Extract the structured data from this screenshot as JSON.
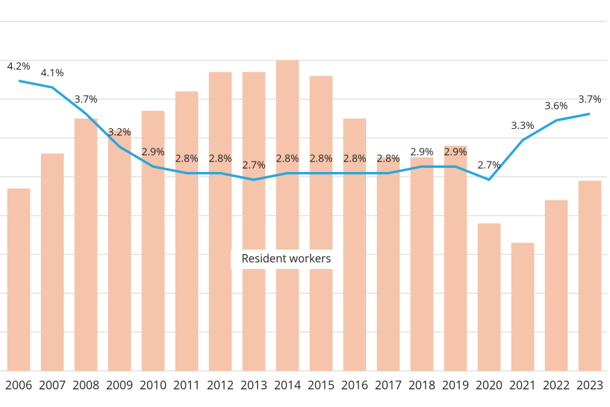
{
  "chart_data": {
    "type": "bar-line",
    "categories": [
      "2006",
      "2007",
      "2008",
      "2009",
      "2010",
      "2011",
      "2012",
      "2013",
      "2014",
      "2015",
      "2016",
      "2017",
      "2018",
      "2019",
      "2020",
      "2021",
      "2022",
      "2023"
    ],
    "series": [
      {
        "type": "bar",
        "color": "#f5c4aa",
        "values": [
          4.7,
          5.6,
          6.5,
          6.2,
          6.7,
          7.2,
          7.7,
          7.7,
          8.0,
          7.6,
          6.5,
          5.5,
          5.5,
          5.8,
          3.8,
          3.3,
          4.4,
          4.9
        ]
      },
      {
        "type": "line",
        "axis": "y2",
        "color": "#2aa6dc",
        "values": [
          4.2,
          4.1,
          3.7,
          3.2,
          2.9,
          2.8,
          2.8,
          2.7,
          2.8,
          2.8,
          2.8,
          2.8,
          2.9,
          2.9,
          2.7,
          3.3,
          3.6,
          3.7
        ],
        "value_labels": [
          "4.2%",
          "4.1%",
          "3.7%",
          "3.2%",
          "2.9%",
          "2.8%",
          "2.8%",
          "2.7%",
          "2.8%",
          "2.8%",
          "2.8%",
          "2.8%",
          "2.9%",
          "2.9%",
          "2.7%",
          "3.3%",
          "3.6%",
          "3.7%"
        ]
      }
    ],
    "annotation": "Resident workers",
    "ylim": [
      0,
      9
    ],
    "gridlines": [
      0,
      1,
      2,
      3,
      4,
      5,
      6,
      7,
      8,
      9
    ],
    "y2lim": [
      -0.2,
      5.1
    ]
  }
}
